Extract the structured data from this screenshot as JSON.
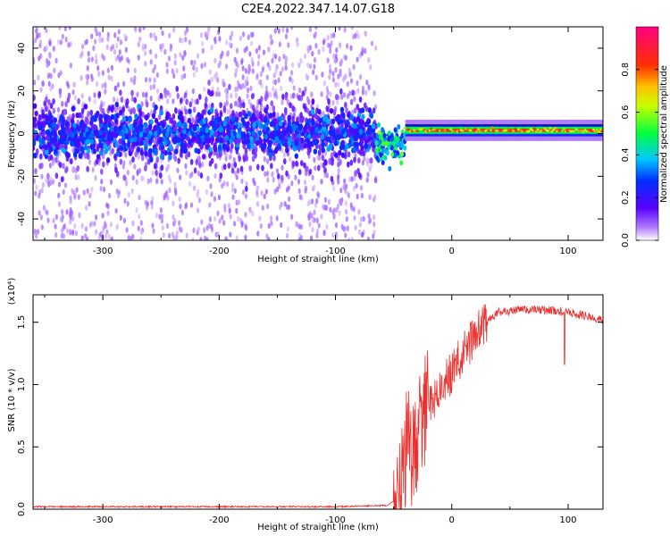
{
  "title": "C2E4.2022.347.14.07.G18",
  "chart_data": [
    {
      "type": "heatmap",
      "xlabel": "Height of straight line (km)",
      "ylabel": "Frequency (Hz)",
      "xlim": [
        -360,
        130
      ],
      "ylim": [
        -50,
        50
      ],
      "xticks": [
        -300,
        -200,
        -100,
        0,
        100
      ],
      "yticks": [
        -40,
        -20,
        0,
        20,
        40
      ],
      "colorbar": {
        "label": "Normalized spectral amplitude",
        "range": [
          0.0,
          1.0
        ],
        "ticks": [
          "0.0",
          "0.2",
          "0.4",
          "0.6",
          "0.8"
        ],
        "colormap": "rainbow (white-violet-blue-cyan-green-yellow-orange-red-magenta)"
      },
      "regions": [
        {
          "x_range": [
            -360,
            -65
          ],
          "pattern": "broadband scatter",
          "strong_band_hz": [
            -10,
            10
          ],
          "amplitude": 0.25
        },
        {
          "x_range": [
            -65,
            -40
          ],
          "pattern": "transition",
          "center_freq_hz": -5,
          "amplitude": 0.4
        },
        {
          "x_range": [
            -40,
            130
          ],
          "pattern": "narrow tone",
          "center_freq_hz": 1.5,
          "amplitude": 0.85
        }
      ]
    },
    {
      "type": "line",
      "xlabel": "Height of straight line (km)",
      "ylabel": "SNR (10 * v/v)",
      "multiplier_label": "(x10⁴)",
      "xlim": [
        -360,
        130
      ],
      "ylim": [
        0,
        1.72
      ],
      "xticks": [
        -300,
        -200,
        -100,
        0,
        100
      ],
      "yticks": [
        "0.0",
        "0.5",
        "1.0",
        "1.5"
      ],
      "series": [
        {
          "color": "#e8312f",
          "x": [
            -360,
            -300,
            -200,
            -100,
            -55,
            -45,
            -40,
            -38,
            -35,
            -30,
            -25,
            -20,
            -10,
            0,
            10,
            20,
            30,
            40,
            60,
            80,
            100,
            115,
            130
          ],
          "y": [
            0.02,
            0.02,
            0.02,
            0.02,
            0.03,
            0.1,
            0.45,
            0.6,
            0.35,
            0.55,
            0.75,
            0.85,
            0.95,
            1.1,
            1.25,
            1.4,
            1.5,
            1.58,
            1.6,
            1.6,
            1.58,
            1.55,
            1.52
          ]
        }
      ]
    }
  ]
}
